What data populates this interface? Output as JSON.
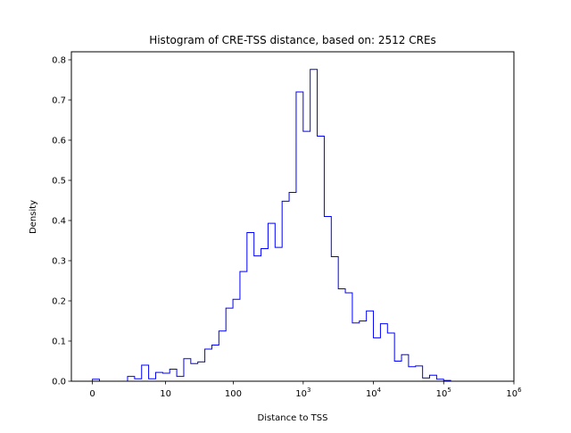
{
  "chart_data": {
    "type": "histogram",
    "title": "Histogram of CRE-TSS distance, based on: 2512 CREs",
    "xlabel": "Distance to TSS",
    "ylabel": "Density",
    "xscale": "log (x+1)",
    "xticks": [
      {
        "base": "0",
        "exp": ""
      },
      {
        "base": "10",
        "exp": ""
      },
      {
        "base": "100",
        "exp": ""
      },
      {
        "base": "10",
        "exp": "3"
      },
      {
        "base": "10",
        "exp": "4"
      },
      {
        "base": "10",
        "exp": "5"
      },
      {
        "base": "10",
        "exp": "6"
      }
    ],
    "yticks": [
      "0.0",
      "0.1",
      "0.2",
      "0.3",
      "0.4",
      "0.5",
      "0.6",
      "0.7",
      "0.8"
    ],
    "ylim": [
      0,
      0.82
    ],
    "xlim_log10_x_plus_1": [
      -0.3,
      6
    ],
    "bin_edges_log10_x_plus_1": [
      0.0,
      0.1,
      0.2,
      0.3,
      0.4,
      0.5,
      0.6,
      0.7,
      0.8,
      0.9,
      1.0,
      1.1,
      1.2,
      1.3,
      1.4,
      1.5,
      1.6,
      1.7,
      1.8,
      1.9,
      2.0,
      2.1,
      2.2,
      2.3,
      2.4,
      2.5,
      2.6,
      2.7,
      2.8,
      2.9,
      3.0,
      3.1,
      3.2,
      3.3,
      3.4,
      3.5,
      3.6,
      3.7,
      3.8,
      3.9,
      4.0,
      4.1,
      4.2,
      4.3,
      4.4,
      4.5,
      4.6,
      4.7,
      4.8,
      4.9,
      5.0,
      5.1,
      5.2,
      5.3,
      5.4,
      5.5,
      5.6
    ],
    "density": [
      0.005,
      0.0,
      0.0,
      0.0,
      0.0,
      0.012,
      0.006,
      0.04,
      0.006,
      0.022,
      0.02,
      0.03,
      0.012,
      0.056,
      0.044,
      0.048,
      0.08,
      0.09,
      0.125,
      0.182,
      0.204,
      0.273,
      0.37,
      0.312,
      0.33,
      0.393,
      0.333,
      0.448,
      0.47,
      0.72,
      0.622,
      0.776,
      0.61,
      0.41,
      0.31,
      0.23,
      0.22,
      0.145,
      0.15,
      0.175,
      0.108,
      0.143,
      0.12,
      0.05,
      0.066,
      0.036,
      0.038,
      0.008,
      0.015,
      0.005,
      0.002,
      0.0,
      0.0,
      0.0,
      0.0,
      0.0
    ],
    "line_color": "#0000ff",
    "grid": false
  }
}
